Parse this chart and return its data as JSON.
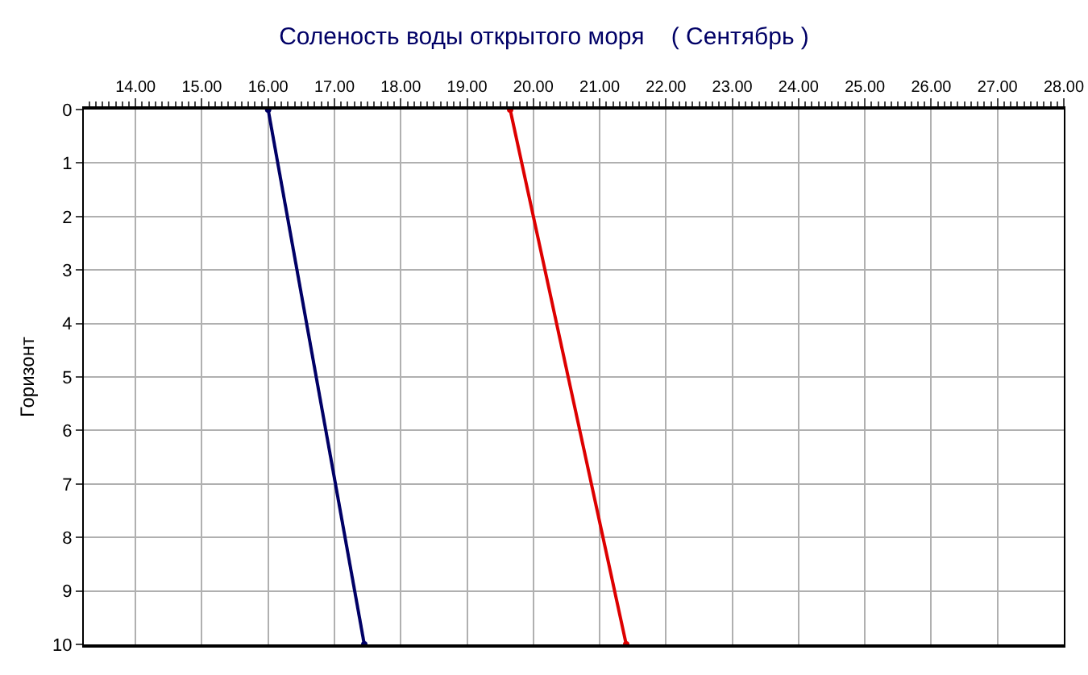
{
  "chart_data": {
    "type": "line",
    "title": "Соленость воды открытого моря    ( Сентябрь )",
    "ylabel": "Горизонт",
    "series": [
      {
        "color": "#000066",
        "x": [
          16.0,
          17.45
        ],
        "values": [
          0,
          10
        ]
      },
      {
        "color": "#dd0000",
        "x": [
          19.65,
          21.4
        ],
        "values": [
          0,
          10
        ]
      }
    ],
    "xlim": [
      13.22,
      28.0
    ],
    "xticks": [
      {
        "value": 14,
        "label": "14.00"
      },
      {
        "value": 15,
        "label": "15.00"
      },
      {
        "value": 16,
        "label": "16.00"
      },
      {
        "value": 17,
        "label": "17.00"
      },
      {
        "value": 18,
        "label": "18.00"
      },
      {
        "value": 19,
        "label": "19.00"
      },
      {
        "value": 20,
        "label": "20.00"
      },
      {
        "value": 21,
        "label": "21.00"
      },
      {
        "value": 22,
        "label": "22.00"
      },
      {
        "value": 23,
        "label": "23.00"
      },
      {
        "value": 24,
        "label": "24.00"
      },
      {
        "value": 25,
        "label": "25.00"
      },
      {
        "value": 26,
        "label": "26.00"
      },
      {
        "value": 27,
        "label": "27.00"
      },
      {
        "value": 28,
        "label": "28.00"
      }
    ],
    "ylim": [
      10,
      0
    ],
    "yticks": [
      0,
      1,
      2,
      3,
      4,
      5,
      6,
      7,
      8,
      9,
      10
    ],
    "grid": true,
    "marker": "circle",
    "line_style": "solid"
  }
}
